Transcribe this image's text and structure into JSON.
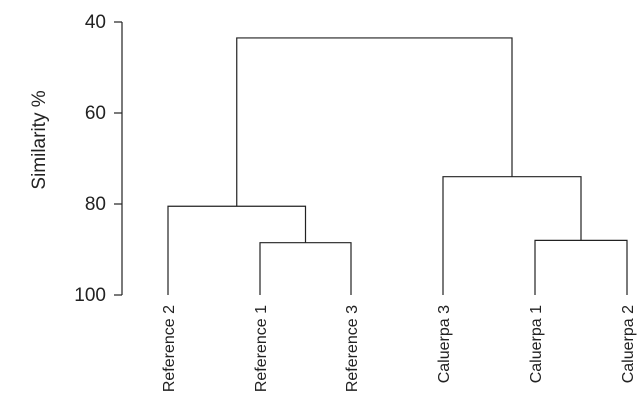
{
  "chart_data": {
    "type": "dendrogram",
    "title": "",
    "ylabel": "Similarity %",
    "ylim": [
      40,
      100
    ],
    "yticks": [
      40,
      60,
      80,
      100
    ],
    "leaves": [
      "Reference 2",
      "Reference 1",
      "Reference 3",
      "Caluerpa 3",
      "Caluerpa 1",
      "Caluerpa 2"
    ],
    "merges": [
      {
        "left": "Reference 1",
        "right": "Reference 3",
        "similarity": 88.5
      },
      {
        "left": "Caluerpa 1",
        "right": "Caluerpa 2",
        "similarity": 88
      },
      {
        "left": "Reference 2",
        "right": "Reference 1 + Reference 3",
        "similarity": 80.5
      },
      {
        "left": "Caluerpa 3",
        "right": "Caluerpa 1 + Caluerpa 2",
        "similarity": 74
      },
      {
        "left": "References",
        "right": "Caluerpa",
        "similarity": 43.5
      }
    ],
    "colors": {
      "line": "#222222",
      "background": "#ffffff"
    }
  }
}
